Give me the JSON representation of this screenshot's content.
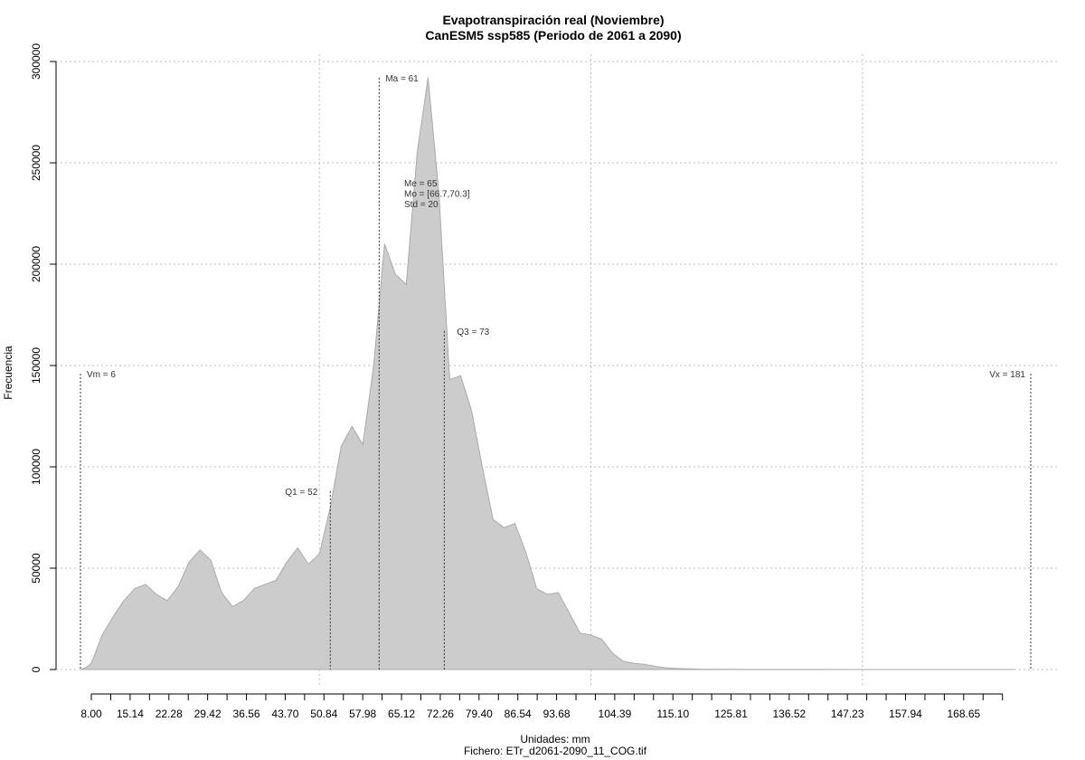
{
  "chart_data": {
    "type": "area",
    "title": "Evapotranspiración real (Noviembre)",
    "subtitle": "CanESM5 ssp585 (Periodo de 2061 a 2090)",
    "xlabel": "Unidades: mm",
    "file_caption": "Fichero: ETr_d2061-2090_11_COG.tif",
    "ylabel": "Frecuencia",
    "xlim": [
      6,
      181
    ],
    "ylim": [
      0,
      300000
    ],
    "x_tick_labels": [
      "8.00",
      "15.14",
      "22.28",
      "29.42",
      "36.56",
      "43.70",
      "50.84",
      "57.98",
      "65.12",
      "72.26",
      "79.40",
      "86.54",
      "93.68",
      "104.39",
      "115.10",
      "125.81",
      "136.52",
      "147.23",
      "157.94",
      "168.65"
    ],
    "x_tick_values": [
      8.0,
      15.14,
      22.28,
      29.42,
      36.56,
      43.7,
      50.84,
      57.98,
      65.12,
      72.26,
      79.4,
      86.54,
      93.68,
      104.39,
      115.1,
      125.81,
      136.52,
      147.23,
      157.94,
      168.65
    ],
    "y_tick_labels": [
      "0",
      "50000",
      "100000",
      "150000",
      "200000",
      "250000",
      "300000"
    ],
    "y_tick_values": [
      0,
      50000,
      100000,
      150000,
      200000,
      250000,
      300000
    ],
    "grid": true,
    "fill_color": "#cccccc",
    "line_color": "#aaaaaa",
    "x": [
      6,
      7,
      8,
      9,
      10,
      12,
      14,
      16,
      18,
      20,
      22,
      24,
      26,
      28,
      30,
      32,
      34,
      36,
      38,
      40,
      42,
      44,
      46,
      48,
      50,
      52,
      54,
      56,
      58,
      60,
      62,
      64,
      66,
      68,
      70,
      72,
      74,
      76,
      78,
      80,
      82,
      84,
      86,
      88,
      90,
      92,
      94,
      96,
      98,
      100,
      102,
      104,
      106,
      108,
      110,
      112,
      114,
      116,
      118,
      120,
      125,
      130,
      140,
      150,
      160,
      170,
      178
    ],
    "values": [
      0,
      1000,
      3000,
      10000,
      17000,
      26000,
      34000,
      40000,
      42000,
      37000,
      34000,
      41000,
      53000,
      59000,
      54000,
      38000,
      31000,
      34000,
      40000,
      42000,
      44000,
      53000,
      60000,
      52000,
      57000,
      80000,
      110000,
      120000,
      111000,
      150000,
      210000,
      195000,
      190000,
      255000,
      292000,
      235000,
      143000,
      145000,
      128000,
      100000,
      74000,
      70000,
      72000,
      58000,
      40000,
      37000,
      38000,
      28000,
      18000,
      17000,
      15000,
      8000,
      4000,
      3000,
      2500,
      1500,
      800,
      500,
      300,
      200,
      100,
      50,
      30,
      20,
      10,
      5,
      0
    ],
    "annotations": [
      {
        "label": "Vm = 6",
        "x": 6,
        "y": 146000
      },
      {
        "label": "Q1 = 52",
        "x": 52,
        "y": 88000
      },
      {
        "label": "Ma = 61",
        "x": 61,
        "y": 292000
      },
      {
        "label": "Q3 = 73",
        "x": 73,
        "y": 167000
      },
      {
        "label": "Vx = 181",
        "x": 181,
        "y": 146000
      }
    ],
    "stats_lines": [
      "Me = 65",
      "Mo = [66.7,70.3]",
      "Std = 20"
    ]
  }
}
